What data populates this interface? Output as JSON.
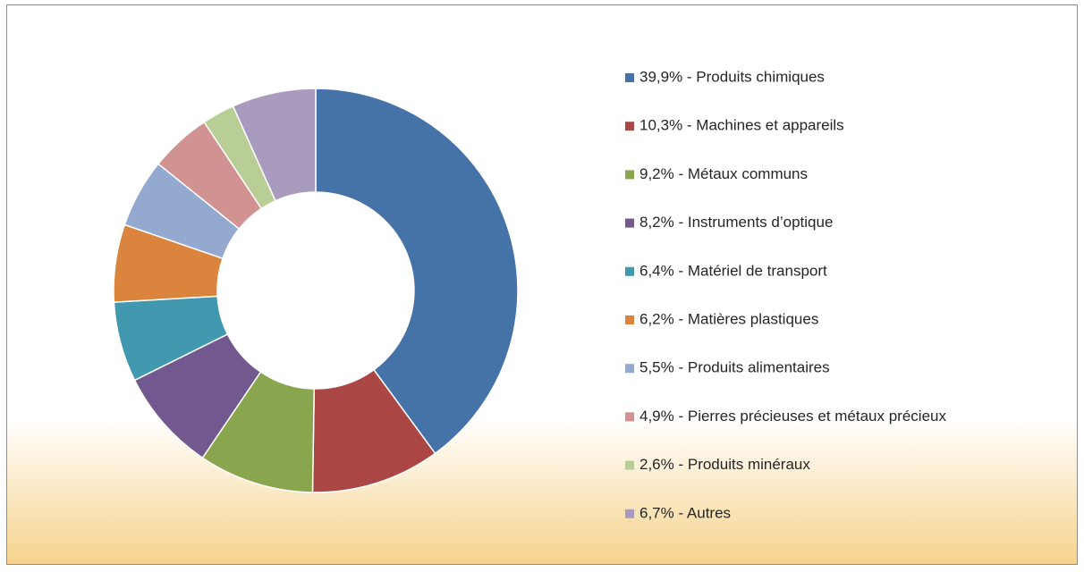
{
  "chart_data": {
    "type": "donut",
    "categories": [
      "39,9% - Produits chimiques",
      "10,3% - Machines et appareils",
      "9,2% - Métaux communs",
      "8,2% - Instruments d’optique",
      "6,4% - Matériel de transport",
      "6,2% - Matières plastiques",
      "5,5% - Produits alimentaires",
      "4,9% - Pierres précieuses et métaux précieux",
      "2,6% - Produits minéraux",
      "6,7% - Autres"
    ],
    "values": [
      39.9,
      10.3,
      9.2,
      8.2,
      6.4,
      6.2,
      5.5,
      4.9,
      2.6,
      6.7
    ],
    "colors": [
      "#4572a7",
      "#aa4643",
      "#89a54e",
      "#71588f",
      "#4198af",
      "#db843d",
      "#93a9cf",
      "#d19392",
      "#b9cd96",
      "#a99bbd"
    ],
    "legend": "right"
  }
}
